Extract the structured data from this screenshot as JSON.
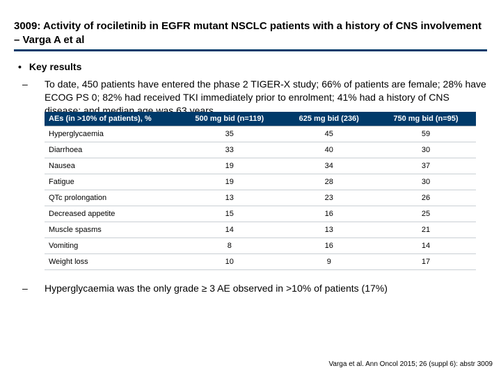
{
  "colors": {
    "underline": "#003a6a",
    "table_header_bg": "#003a6a",
    "text": "#000000"
  },
  "title": "3009: Activity of rociletinib in EGFR mutant NSCLC patients with a history of CNS involvement – Varga A et al",
  "section_header": "Key results",
  "paragraph": "To date, 450 patients have entered the phase 2 TIGER-X study; 66% of patients are female; 28% have ECOG PS 0; 82% had received TKI immediately prior to enrolment; 41% had a history of CNS disease; and median age was 63 years",
  "table": {
    "header_bg": "#003a6a",
    "header_color": "#ffffff",
    "row_border": "#c9cfd4",
    "columns": [
      "AEs (in >10% of patients), %",
      "500 mg bid (n=119)",
      "625 mg bid (236)",
      "750 mg bid (n=95)"
    ],
    "rows": [
      [
        "Hyperglycaemia",
        "35",
        "45",
        "59"
      ],
      [
        "Diarrhoea",
        "33",
        "40",
        "30"
      ],
      [
        "Nausea",
        "19",
        "34",
        "37"
      ],
      [
        "Fatigue",
        "19",
        "28",
        "30"
      ],
      [
        "QTc prolongation",
        "13",
        "23",
        "26"
      ],
      [
        "Decreased appetite",
        "15",
        "16",
        "25"
      ],
      [
        "Muscle spasms",
        "14",
        "13",
        "21"
      ],
      [
        "Vomiting",
        "8",
        "16",
        "14"
      ],
      [
        "Weight loss",
        "10",
        "9",
        "17"
      ]
    ]
  },
  "footnote": "Hyperglycaemia was the only grade ≥ 3 AE observed in >10% of patients (17%)",
  "citation": "Varga et al. Ann Oncol 2015; 26 (suppl 6): abstr 3009"
}
